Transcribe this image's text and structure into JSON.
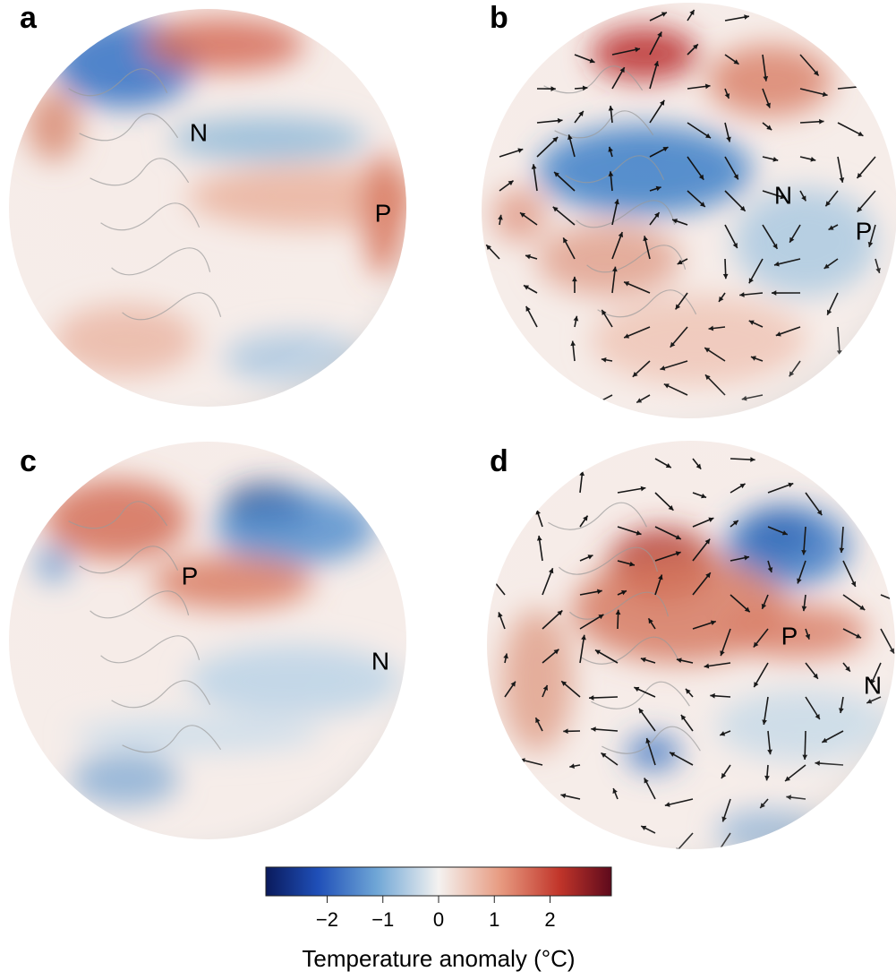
{
  "panels": [
    {
      "label": "a",
      "markers": [
        "N",
        "P"
      ]
    },
    {
      "label": "b",
      "markers": [
        "N",
        "P"
      ]
    },
    {
      "label": "c",
      "markers": [
        "P",
        "N"
      ]
    },
    {
      "label": "d",
      "markers": [
        "P",
        "N"
      ]
    }
  ],
  "colorbar": {
    "label": "Temperature anomaly (°C)",
    "lim": [
      -3.1,
      3.1
    ],
    "ticks": [
      {
        "value": -2,
        "label": "−2"
      },
      {
        "value": -1,
        "label": "−1"
      },
      0,
      1,
      2
    ]
  }
}
